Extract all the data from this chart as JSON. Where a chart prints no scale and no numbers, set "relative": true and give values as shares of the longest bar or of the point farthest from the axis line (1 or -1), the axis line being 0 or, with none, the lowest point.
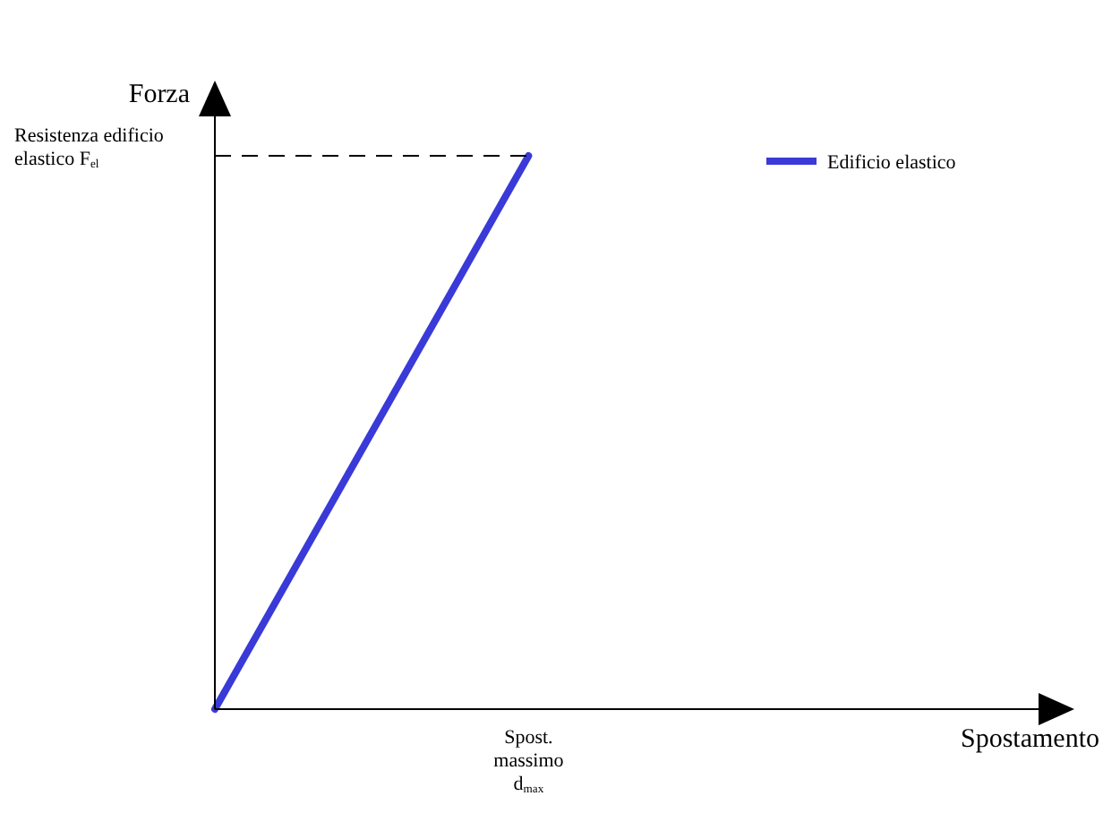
{
  "chart_data": {
    "type": "line",
    "relative": true,
    "ylabel": "Forza",
    "categories": [
      null,
      null
    ],
    "annotations": [
      "Spost. massimo d$_{max}$",
      "Spostamento"
    ],
    "series": [
      {
        "name": "Edificio elastico",
        "color": "#3a3ad8",
        "values": [
          0,
          1
        ]
      }
    ],
    "ref_lines": [
      {
        "axis": "y",
        "value": 1,
        "label": "Resistenza edificio elastico F$_{el}$",
        "line_style": "dashed",
        "color": "#000000"
      }
    ],
    "legend": "top right",
    "marker": "none",
    "line_style": "solid"
  }
}
